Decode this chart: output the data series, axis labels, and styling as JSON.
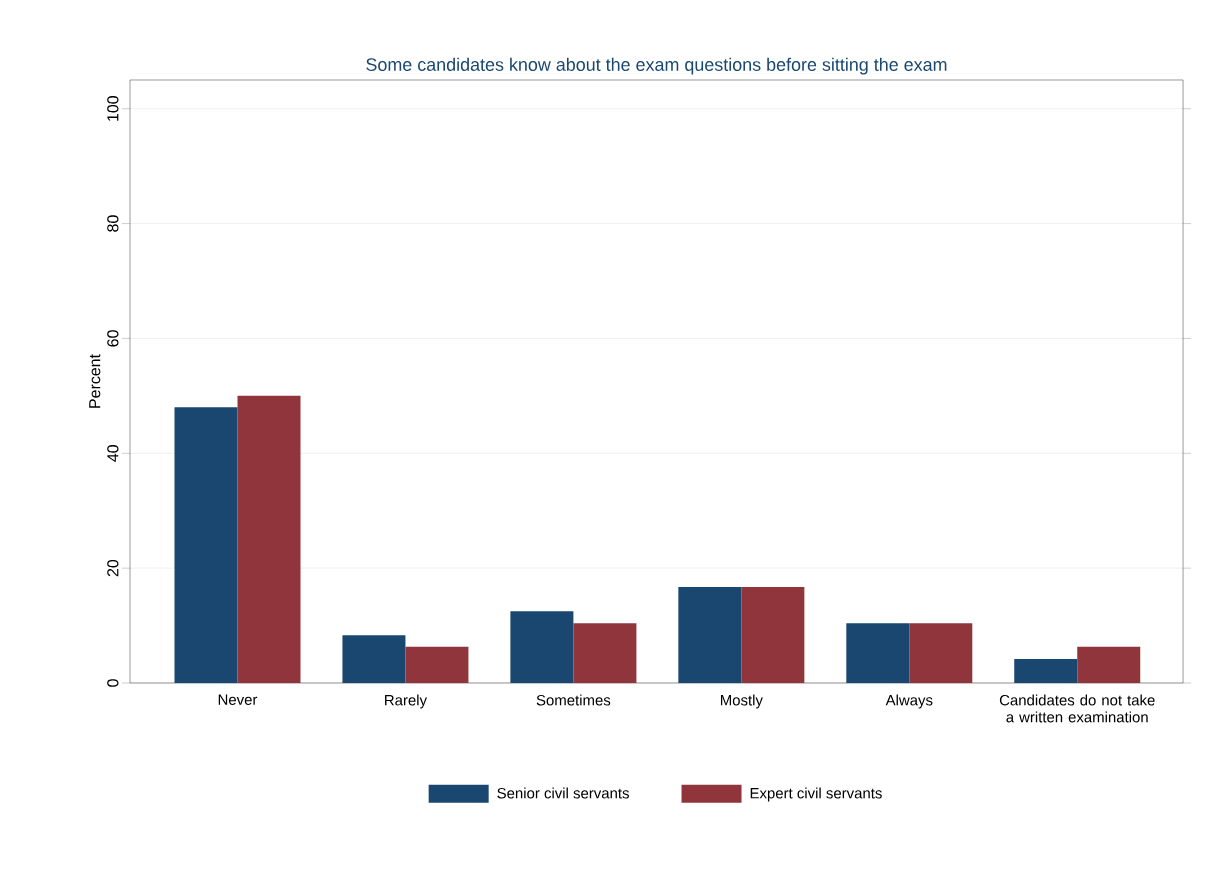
{
  "chart_data": {
    "type": "bar",
    "title": "Some candidates know about the exam questions before sitting the exam",
    "ylabel": "Percent",
    "categories": [
      "Never",
      "Rarely",
      "Sometimes",
      "Mostly",
      "Always",
      "Candidates do not take a written examination"
    ],
    "series": [
      {
        "name": "Senior civil servants",
        "color": "#1a476f",
        "values": [
          48,
          8.3,
          12.5,
          16.7,
          10.4,
          4.2
        ]
      },
      {
        "name": "Expert civil servants",
        "color": "#90353b",
        "values": [
          50,
          6.3,
          10.4,
          16.7,
          10.4,
          6.3
        ]
      }
    ],
    "ylim": [
      0,
      105
    ],
    "yticks": [
      0,
      20,
      40,
      60,
      80,
      100
    ],
    "grid": "y",
    "legend": "bottom"
  }
}
